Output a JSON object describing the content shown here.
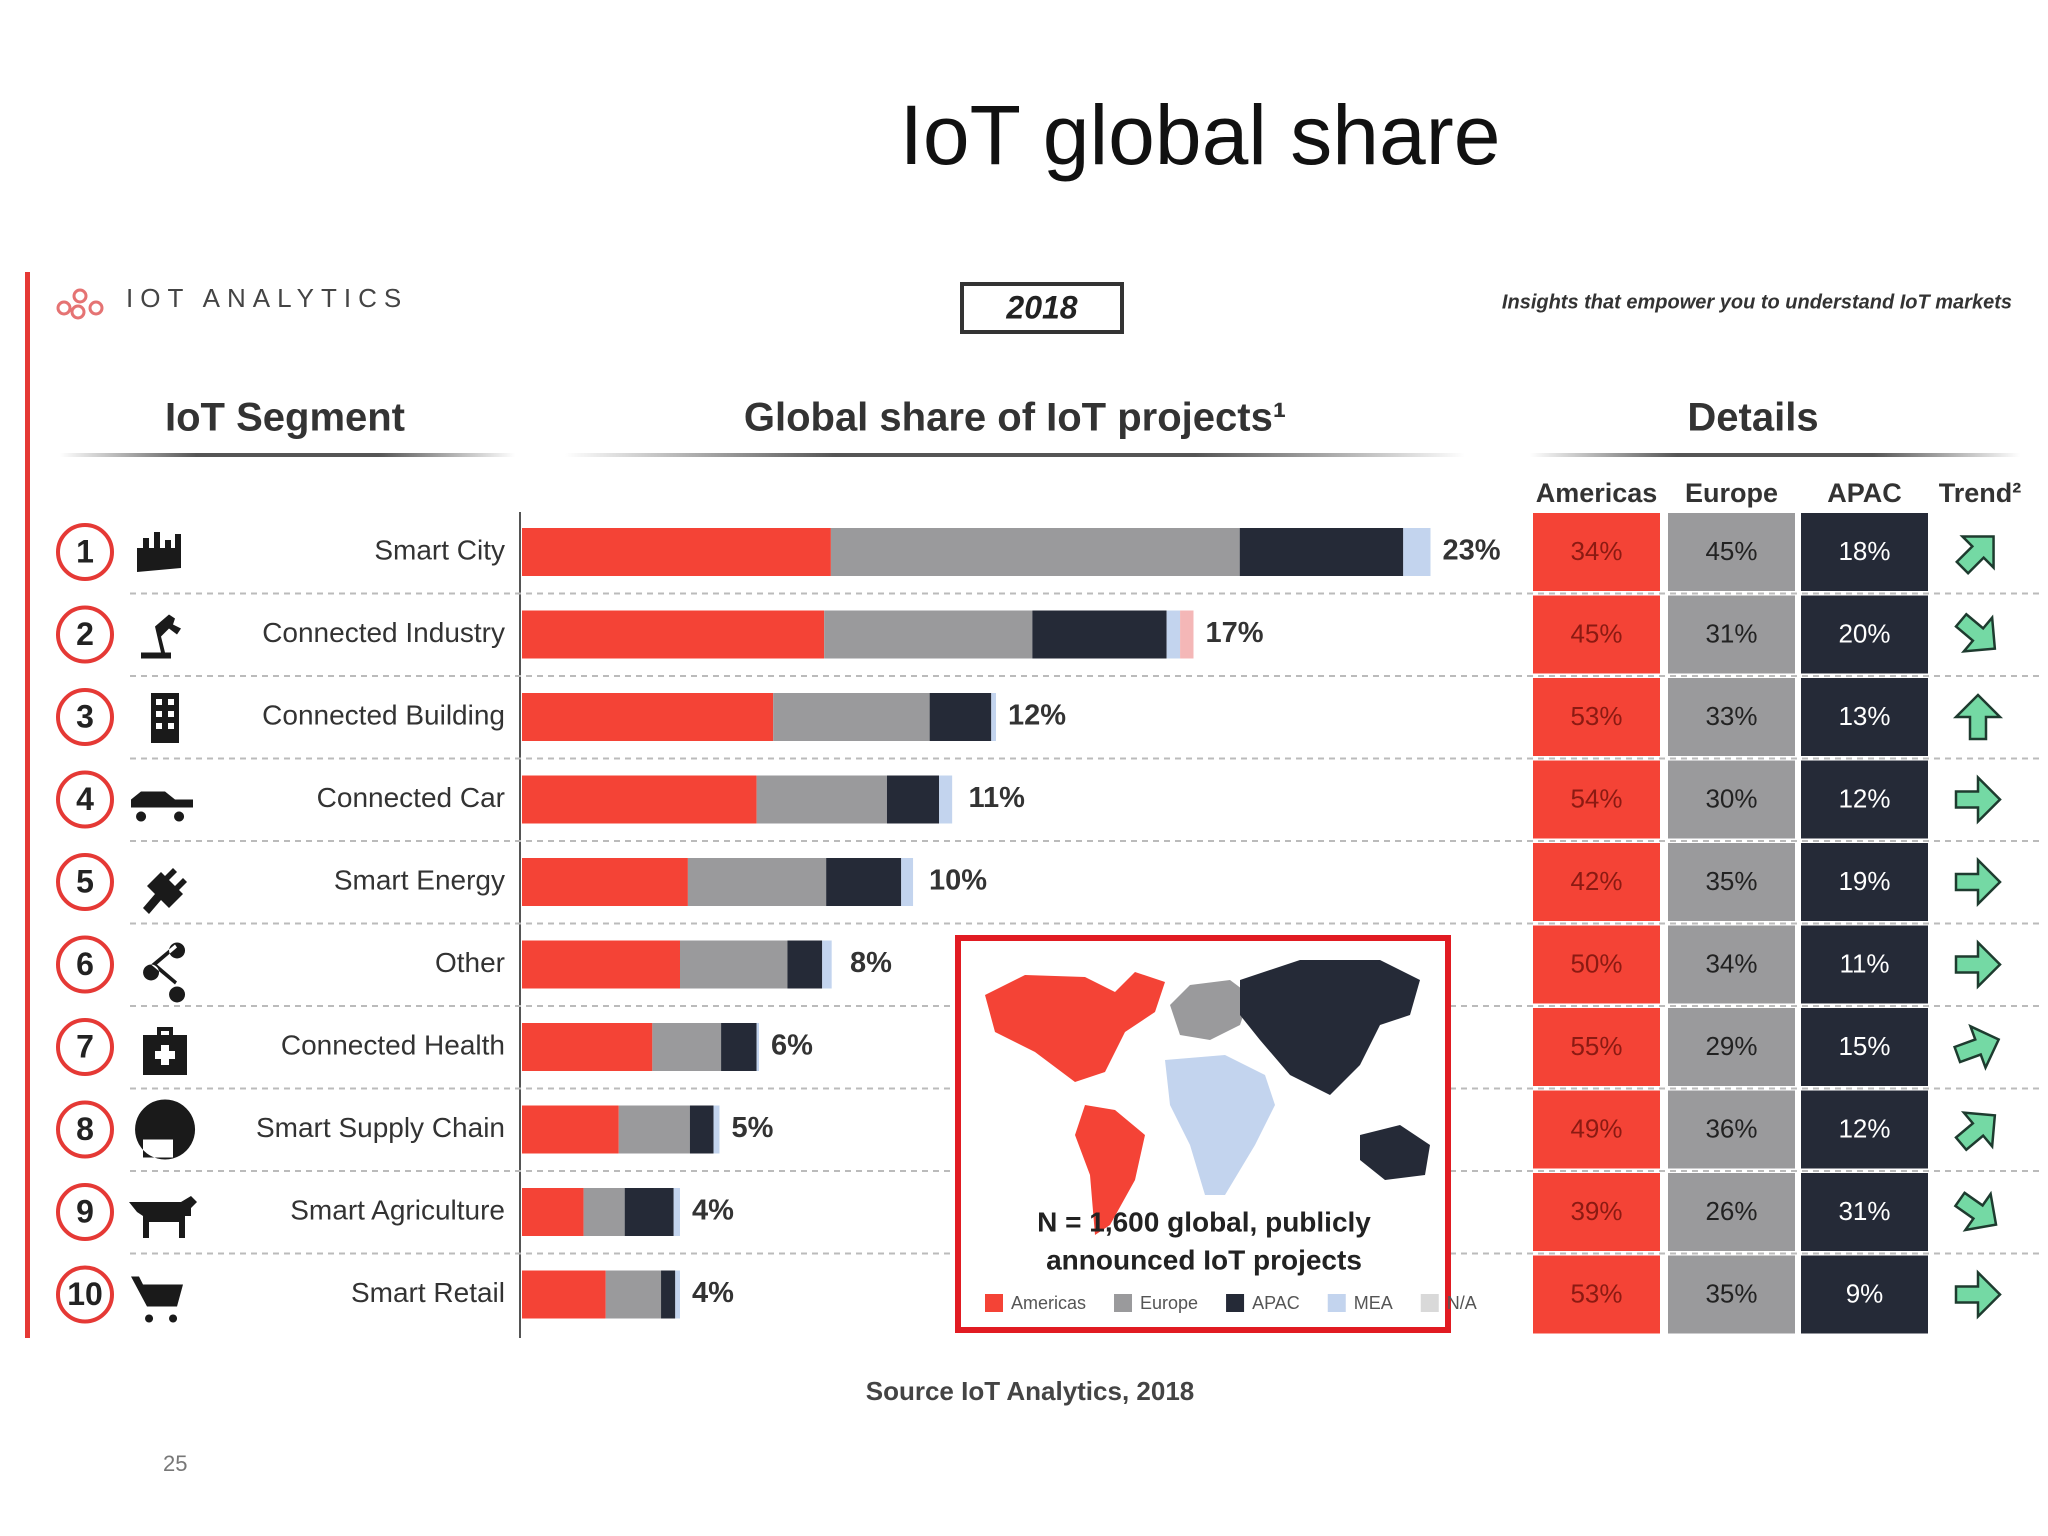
{
  "title": "IoT global share",
  "header": {
    "brand": "IOT ANALYTICS",
    "year": "2018",
    "tagline": "Insights that empower you to understand IoT markets"
  },
  "chart_data": {
    "type": "bar",
    "segment_heading": "IoT Segment",
    "title": "Global share of IoT projects¹",
    "details_heading": "Details",
    "trend_heading": "Trend²",
    "ranks": [
      "1",
      "2",
      "3",
      "4",
      "5",
      "6",
      "7",
      "8",
      "9",
      "10"
    ],
    "categories": [
      "Smart City",
      "Connected Industry",
      "Connected Building",
      "Connected Car",
      "Smart Energy",
      "Other",
      "Connected Health",
      "Smart Supply Chain",
      "Smart Agriculture",
      "Smart Retail"
    ],
    "values": [
      23,
      17,
      12,
      11,
      10,
      8,
      6,
      5,
      4,
      4
    ],
    "value_labels": [
      "23%",
      "17%",
      "12%",
      "11%",
      "10%",
      "8%",
      "6%",
      "5%",
      "4%",
      "4%"
    ],
    "series": [
      {
        "name": "Americas",
        "color": "#f44336",
        "values": [
          34,
          45,
          53,
          54,
          42,
          50,
          55,
          49,
          39,
          53
        ],
        "value_labels": [
          "34%",
          "45%",
          "53%",
          "54%",
          "42%",
          "50%",
          "55%",
          "49%",
          "39%",
          "53%"
        ]
      },
      {
        "name": "Europe",
        "color": "#9a9a9c",
        "values": [
          45,
          31,
          33,
          30,
          35,
          34,
          29,
          36,
          26,
          35
        ],
        "value_labels": [
          "45%",
          "31%",
          "33%",
          "30%",
          "35%",
          "34%",
          "29%",
          "36%",
          "26%",
          "35%"
        ]
      },
      {
        "name": "APAC",
        "color": "#252a37",
        "values": [
          18,
          20,
          13,
          12,
          19,
          11,
          15,
          12,
          31,
          9
        ],
        "value_labels": [
          "18%",
          "20%",
          "13%",
          "12%",
          "19%",
          "11%",
          "15%",
          "12%",
          "31%",
          "9%"
        ]
      },
      {
        "name": "MEA",
        "color": "#c3d4ee",
        "values": [
          3,
          2,
          1,
          3,
          3,
          3,
          1,
          3,
          4,
          3
        ]
      },
      {
        "name": "N/A",
        "color": "#f4b7b7",
        "values": [
          0,
          2,
          0,
          0,
          0,
          0,
          0,
          0,
          0,
          0
        ]
      }
    ],
    "trends": [
      45,
      -40,
      90,
      0,
      0,
      0,
      20,
      40,
      -35,
      0
    ],
    "map_note": [
      "N = 1,600 global, publicly",
      "announced IoT projects"
    ]
  },
  "source": "Source IoT Analytics, 2018",
  "page_number": "25"
}
